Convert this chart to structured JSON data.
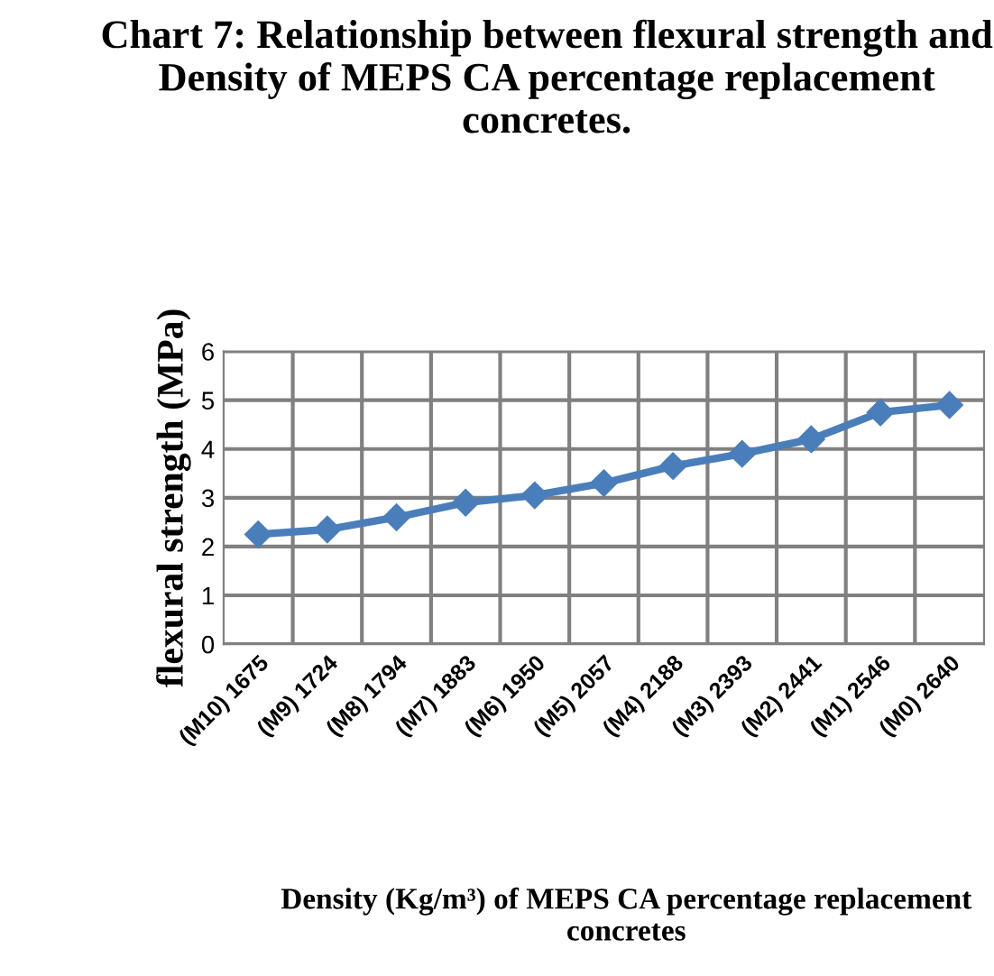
{
  "chart_data": {
    "type": "line",
    "title": "Chart 7: Relationship between flexural strength and Density of MEPS CA percentage replacement concretes.",
    "xlabel": "Density (Kg/m³) of MEPS CA percentage replacement concretes",
    "ylabel": "flexural strength (MPa)",
    "categories": [
      "(M10) 1675",
      "(M9) 1724",
      "(M8) 1794",
      "(M7) 1883",
      "(M6) 1950",
      "(M5) 2057",
      "(M4) 2188",
      "(M3) 2393",
      "(M2) 2441",
      "(M1) 2546",
      "(M0) 2640"
    ],
    "series": [
      {
        "color": "#4a7ebb",
        "values": [
          2.25,
          2.35,
          2.6,
          2.9,
          3.05,
          3.3,
          3.65,
          3.9,
          4.2,
          4.75,
          4.9
        ]
      }
    ],
    "ylim": [
      0,
      6
    ],
    "yticks": [
      0,
      1,
      2,
      3,
      4,
      5,
      6
    ],
    "grid": true,
    "marker": "diamond",
    "line_style": "solid",
    "legend": false
  }
}
